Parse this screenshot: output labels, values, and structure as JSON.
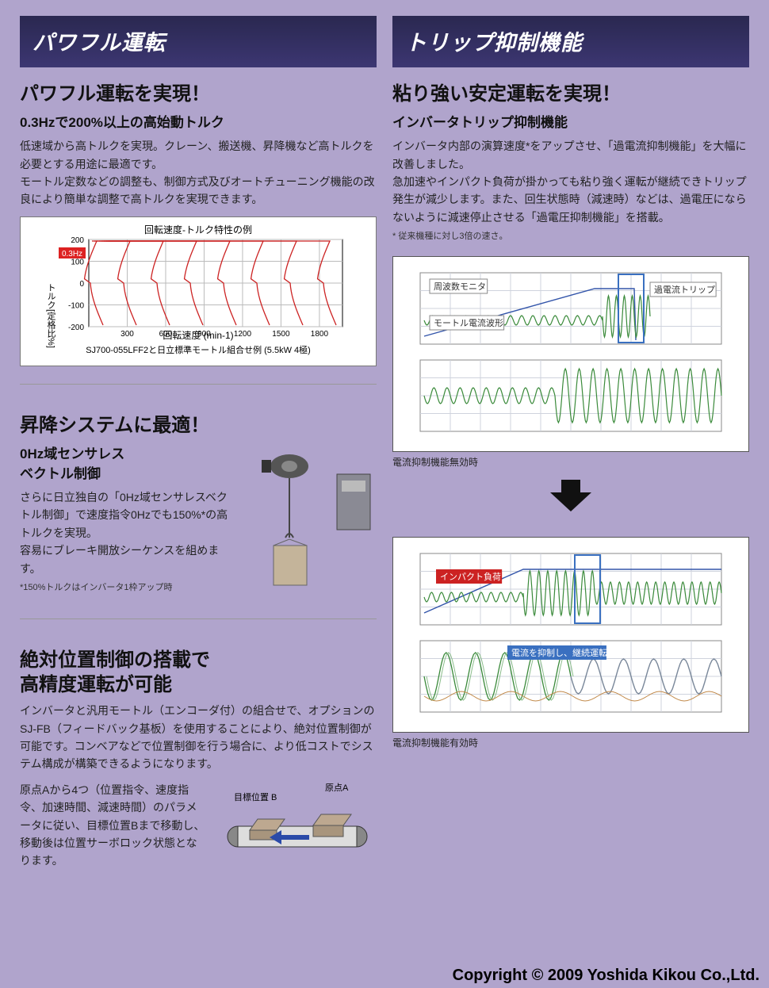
{
  "left": {
    "band": "パワフル運転",
    "s1": {
      "h2": "パワフル運転を実現！",
      "h3": "0.3Hzで200%以上の高始動トルク",
      "body": "低速域から高トルクを実現。クレーン、搬送機、昇降機など高トルクを必要とする用途に最適です。\nモートル定数などの調整も、制御方式及びオートチューニング機能の改良により簡単な調整で高トルクを実現できます。",
      "chart": {
        "title": "回転速度-トルク特性の例",
        "ylabel": "トルク[定格比%]",
        "xlabel": "回転速度 (min-1)",
        "caption": "SJ700-055LFF2と日立標準モートル組合せ例 (5.5kW 4極)",
        "yticks": [
          "200",
          "100",
          "0",
          "-100",
          "-200"
        ],
        "xticks": [
          "300",
          "600",
          "900",
          "1200",
          "1500",
          "1800"
        ],
        "mark": "0.3Hz",
        "bg": "#ffffff",
        "grid": "#bbbbbb",
        "curve": "#cc2222",
        "axis": "#000000",
        "mark_bg": "#dd2222",
        "mark_fg": "#ffffff"
      }
    },
    "s2": {
      "h2": "昇降システムに最適！",
      "h3": "0Hz域センサレス\nベクトル制御",
      "body": "さらに日立独自の「0Hz域センサレスベクトル制御」で速度指令0Hzでも150%*の高トルクを実現。\n容易にブレーキ開放シーケンスを組めます。",
      "note": "*150%トルクはインバータ1枠アップ時"
    },
    "s3": {
      "h2": "絶対位置制御の搭載で\n高精度運転が可能",
      "body1": "インバータと汎用モートル（エンコーダ付）の組合せで、オプションのSJ-FB（フィードバック基板）を使用することにより、絶対位置制御が可能です。コンベアなどで位置制御を行う場合に、より低コストでシステム構成が構築できるようになります。",
      "body2": "原点Aから4つ（位置指令、速度指令、加速時間、減速時間）のパラメータに従い、目標位置Bまで移動し、移動後は位置サーボロック状態となります。",
      "dia": {
        "labelA": "原点A",
        "labelB": "目標位置\nB",
        "conveyor": "#444",
        "box": "#bda890",
        "arrow": "#2a4aa8"
      }
    }
  },
  "right": {
    "band": "トリップ抑制機能",
    "s1": {
      "h2": "粘り強い安定運転を実現！",
      "h3": "インバータトリップ抑制機能",
      "body": "インバータ内部の演算速度*をアップさせ、「過電流抑制機能」を大幅に改善しました。\n急加速やインパクト負荷が掛かっても粘り強く運転が継続できトリップ発生が減少します。また、回生状態時（減速時）などは、過電圧にならないように減速停止させる「過電圧抑制機能」を搭載。",
      "note": "* 従来機種に対し3倍の速さ。"
    },
    "scopeA": {
      "lab_freq": "周波数モニタ",
      "lab_trip": "過電流トリップ",
      "lab_motor": "モートル電流波形",
      "caption": "電流抑制機能無効時",
      "freq_color": "#3355aa",
      "wave_color": "#3a8a3a",
      "grid": "#cfd3dd",
      "box": "#3a70c0",
      "bg": "#ffffff",
      "labelbox_fill": "#ffffff",
      "labelbox_stroke": "#888"
    },
    "scopeB": {
      "lab_impact": "インパクト負荷",
      "lab_suppress": "電流を抑制し、継続運転",
      "caption": "電流抑制機能有効時",
      "wave_color": "#3a8a3a",
      "wave2": "#7a889a",
      "grid": "#cfd3dd",
      "box": "#3a70c0",
      "bg": "#ffffff",
      "impact_bg": "#cc2222",
      "impact_fg": "#ffffff",
      "suppress_bg": "#3a70c0",
      "suppress_fg": "#ffffff"
    }
  },
  "footer": "Copyright © 2009 Yoshida Kikou Co.,Ltd."
}
